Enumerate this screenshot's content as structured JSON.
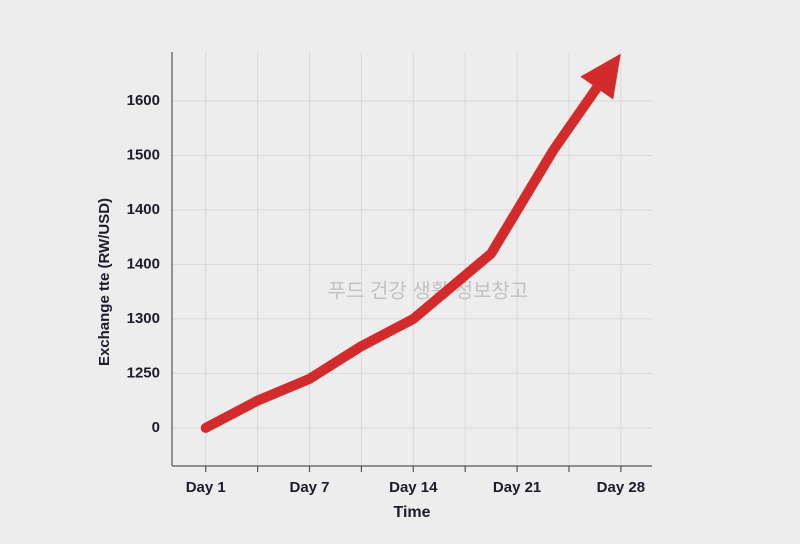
{
  "chart_data": {
    "type": "line",
    "y_label": "Exchange tte (RW/USD)",
    "x_label": "Time",
    "watermark": "푸드 건강 생활 정보창고",
    "x": [
      0,
      1,
      2,
      3,
      4,
      5.5,
      6.7,
      7.8
    ],
    "series": [
      {
        "color": "#d32b2b",
        "values": [
          0,
          0.5,
          0.9,
          1.5,
          2.0,
          3.2,
          5.1,
          6.6
        ]
      }
    ],
    "xlim": [
      -0.65,
      8.6
    ],
    "xticks": [
      {
        "value": 0,
        "label": "Day 1"
      },
      {
        "value": 2,
        "label": "Day 7"
      },
      {
        "value": 4,
        "label": "Day 14"
      },
      {
        "value": 6,
        "label": "Day 21"
      },
      {
        "value": 8,
        "label": "Day 28"
      }
    ],
    "ylim": [
      -0.7,
      6.9
    ],
    "yticks": [
      {
        "value": 0,
        "label": "0"
      },
      {
        "value": 1,
        "label": "1250"
      },
      {
        "value": 2,
        "label": "1300"
      },
      {
        "value": 3,
        "label": "1400"
      },
      {
        "value": 4,
        "label": "1400"
      },
      {
        "value": 5,
        "label": "1500"
      },
      {
        "value": 6,
        "label": "1600"
      }
    ],
    "grid": true,
    "arrow_end": true
  }
}
